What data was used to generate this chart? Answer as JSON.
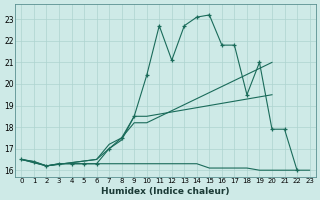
{
  "bg_color": "#ceeae7",
  "line_color": "#1a6b5a",
  "grid_color": "#aed4d0",
  "xlabel": "Humidex (Indice chaleur)",
  "xlim": [
    -0.5,
    23.5
  ],
  "ylim": [
    15.7,
    23.7
  ],
  "xticks": [
    0,
    1,
    2,
    3,
    4,
    5,
    6,
    7,
    8,
    9,
    10,
    11,
    12,
    13,
    14,
    15,
    16,
    17,
    18,
    19,
    20,
    21,
    22,
    23
  ],
  "yticks": [
    16,
    17,
    18,
    19,
    20,
    21,
    22,
    23
  ],
  "line1_x": [
    0,
    1,
    2,
    3,
    4,
    5,
    6,
    7,
    8,
    9,
    10,
    11,
    12,
    13,
    14,
    15,
    16,
    17,
    18,
    19,
    20,
    21,
    22,
    23
  ],
  "line1_y": [
    16.5,
    16.4,
    16.2,
    16.3,
    16.3,
    16.3,
    16.3,
    16.3,
    16.3,
    16.3,
    16.3,
    16.3,
    16.3,
    16.3,
    16.3,
    16.1,
    16.1,
    16.1,
    16.1,
    16.0,
    16.0,
    16.0,
    16.0,
    16.0
  ],
  "line2_x": [
    0,
    1,
    2,
    3,
    4,
    5,
    6,
    7,
    8,
    9,
    10,
    11,
    12,
    13,
    14,
    15,
    16,
    17,
    18,
    19,
    20,
    21,
    22
  ],
  "line2_y": [
    16.5,
    16.4,
    16.2,
    16.3,
    16.3,
    16.3,
    16.3,
    17.0,
    17.5,
    18.5,
    20.4,
    22.7,
    21.1,
    22.7,
    23.1,
    23.2,
    21.8,
    21.8,
    19.5,
    21.0,
    17.9,
    17.9,
    16.0
  ],
  "line3_x": [
    0,
    2,
    6,
    7,
    8,
    9,
    10,
    20
  ],
  "line3_y": [
    16.5,
    16.2,
    16.5,
    17.2,
    17.5,
    18.2,
    18.2,
    21.0
  ],
  "line4_x": [
    0,
    2,
    6,
    7,
    8,
    9,
    10,
    20
  ],
  "line4_y": [
    16.5,
    16.2,
    16.5,
    17.0,
    17.4,
    18.5,
    18.5,
    19.5
  ]
}
